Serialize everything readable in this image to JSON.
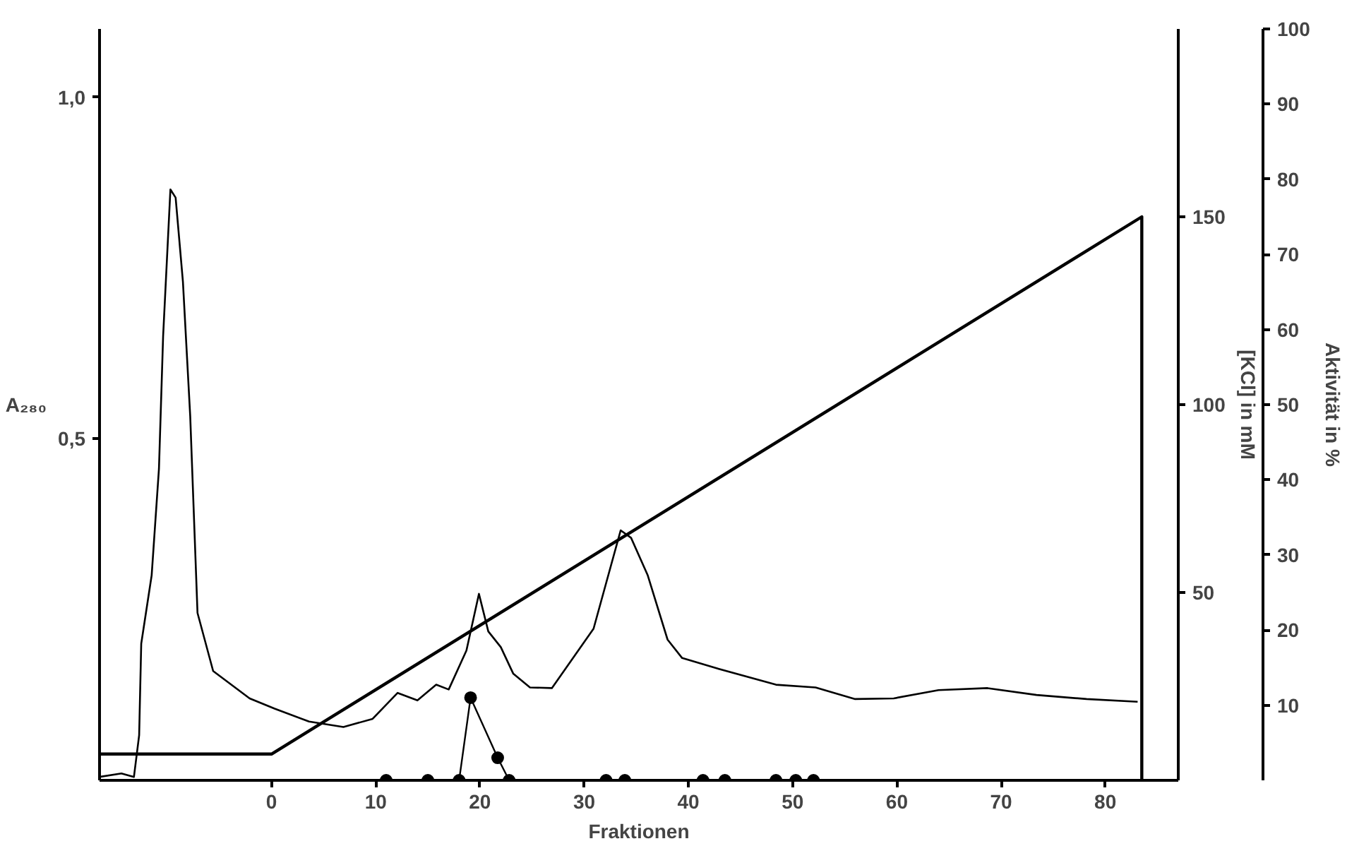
{
  "chart_data": {
    "type": "line",
    "xlabel": "Fraktionen",
    "ylabel": "A₂₈₀",
    "y2label": "[KCl] in mM",
    "y3label": "Aktivität in %",
    "xlim": [
      -16.5,
      87
    ],
    "xticks": [
      0,
      10,
      20,
      30,
      40,
      50,
      60,
      70,
      80
    ],
    "ylim": [
      0,
      1.1
    ],
    "yticks": [
      {
        "value": 0.5,
        "label": "0,5"
      },
      {
        "value": 1,
        "label": "1,0"
      }
    ],
    "y2lim": [
      0,
      200
    ],
    "y2ticks": [
      50,
      100,
      150
    ],
    "y3lim": [
      0,
      100
    ],
    "y3ticks": [
      10,
      20,
      30,
      40,
      50,
      60,
      70,
      80,
      90,
      100
    ],
    "grid": false,
    "line_style": "solid",
    "series": [
      {
        "color": "#000000",
        "axis": "y",
        "x": [
          -16.5,
          -14.4,
          -13.2,
          -12.7,
          -12.5,
          -11.5,
          -10.8,
          -10.4,
          -9.7,
          -9.2,
          -8.5,
          -7.8,
          -7.1,
          -5.6,
          -2.1,
          0.3,
          3.6,
          6.9,
          9.7,
          12.1,
          14.0,
          15.8,
          17.0,
          18.7,
          19.9,
          20.8,
          22.0,
          23.2,
          24.8,
          26.9,
          30.9,
          33.5,
          34.5,
          36.1,
          38.0,
          39.4,
          42.7,
          48.4,
          52.2,
          56.0,
          59.7,
          64.0,
          68.7,
          73.4,
          78.2,
          83.1
        ],
        "values": [
          0.005,
          0.01,
          0.005,
          0.066,
          0.2,
          0.3,
          0.456,
          0.65,
          0.865,
          0.853,
          0.73,
          0.533,
          0.245,
          0.16,
          0.12,
          0.105,
          0.086,
          0.078,
          0.09,
          0.128,
          0.117,
          0.14,
          0.133,
          0.19,
          0.273,
          0.218,
          0.195,
          0.156,
          0.136,
          0.135,
          0.222,
          0.366,
          0.355,
          0.3,
          0.206,
          0.179,
          0.164,
          0.14,
          0.136,
          0.119,
          0.12,
          0.132,
          0.135,
          0.125,
          0.119,
          0.115
        ]
      },
      {
        "color": "#000000",
        "axis": "y2",
        "x": [
          -16.5,
          0,
          83.5,
          83.5
        ],
        "values": [
          7,
          7,
          150,
          0
        ]
      },
      {
        "color": "#000000",
        "axis": "y3",
        "marker": "circle",
        "x": [
          11,
          15,
          18,
          19.1,
          21.7,
          22.8,
          32.1,
          33.9,
          41.4,
          43.5,
          48.4,
          50.3,
          52
        ],
        "values": [
          0,
          0,
          0,
          11,
          3,
          0,
          0,
          0,
          0,
          0,
          0,
          0,
          0
        ]
      }
    ]
  }
}
